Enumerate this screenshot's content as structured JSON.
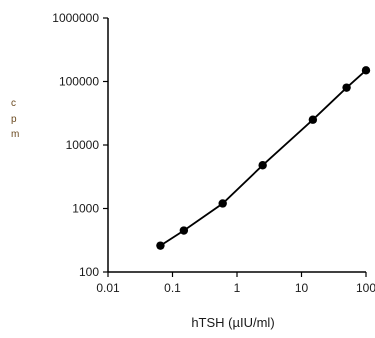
{
  "chart_data": {
    "type": "line",
    "title": "",
    "xlabel": "hTSH (µIU/ml)",
    "ylabel": "",
    "x_scale": "log",
    "y_scale": "log",
    "xlim": [
      0.01,
      100
    ],
    "ylim": [
      100,
      1000000
    ],
    "x_ticks": [
      0.01,
      0.1,
      1,
      10,
      100
    ],
    "x_tick_labels": [
      "0.01",
      "0.1",
      "1",
      "10",
      "100"
    ],
    "y_ticks": [
      100,
      1000,
      10000,
      100000,
      1000000
    ],
    "y_tick_labels": [
      "100",
      "1000",
      "10000",
      "100000",
      "1000000"
    ],
    "grid": false,
    "legend": "none",
    "series": [
      {
        "x": [
          0.065,
          0.15,
          0.6,
          2.5,
          15,
          50,
          100
        ],
        "y": [
          260,
          450,
          1200,
          4800,
          25000,
          80000,
          150000
        ]
      }
    ],
    "colors": {
      "line": "#000000",
      "marker": "#000000",
      "ylabel_fragment": "#6b4a20"
    }
  }
}
